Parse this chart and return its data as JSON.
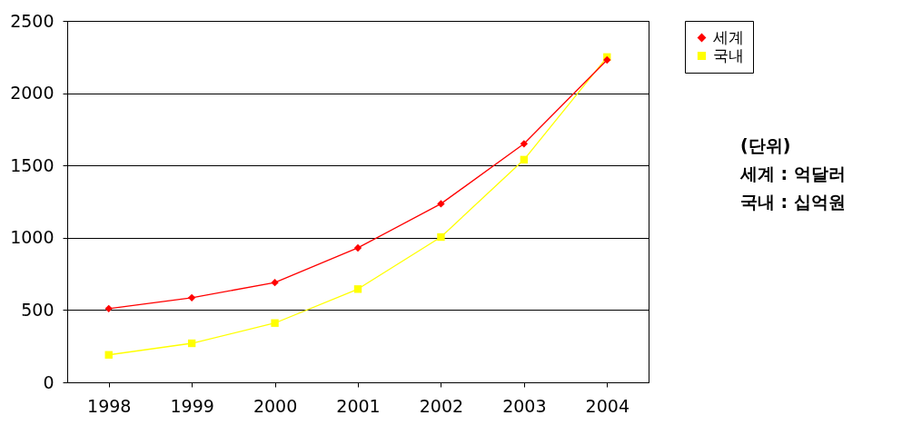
{
  "chart_data": {
    "type": "line",
    "categories": [
      "1998",
      "1999",
      "2000",
      "2001",
      "2002",
      "2003",
      "2004"
    ],
    "series": [
      {
        "name": "세계",
        "color": "#ff0000",
        "marker": "diamond",
        "values": [
          510,
          585,
          690,
          930,
          1235,
          1650,
          2230
        ]
      },
      {
        "name": "국내",
        "color": "#ffff00",
        "marker": "square",
        "values": [
          190,
          270,
          410,
          645,
          1005,
          1540,
          2250
        ]
      }
    ],
    "ylim": [
      0,
      2500
    ],
    "yticks": [
      0,
      500,
      1000,
      1500,
      2000,
      2500
    ],
    "grid": "y",
    "legend": "top right",
    "annotations": [
      "(단위)",
      "세계 : 억달러",
      "국내 : 십억원"
    ]
  }
}
